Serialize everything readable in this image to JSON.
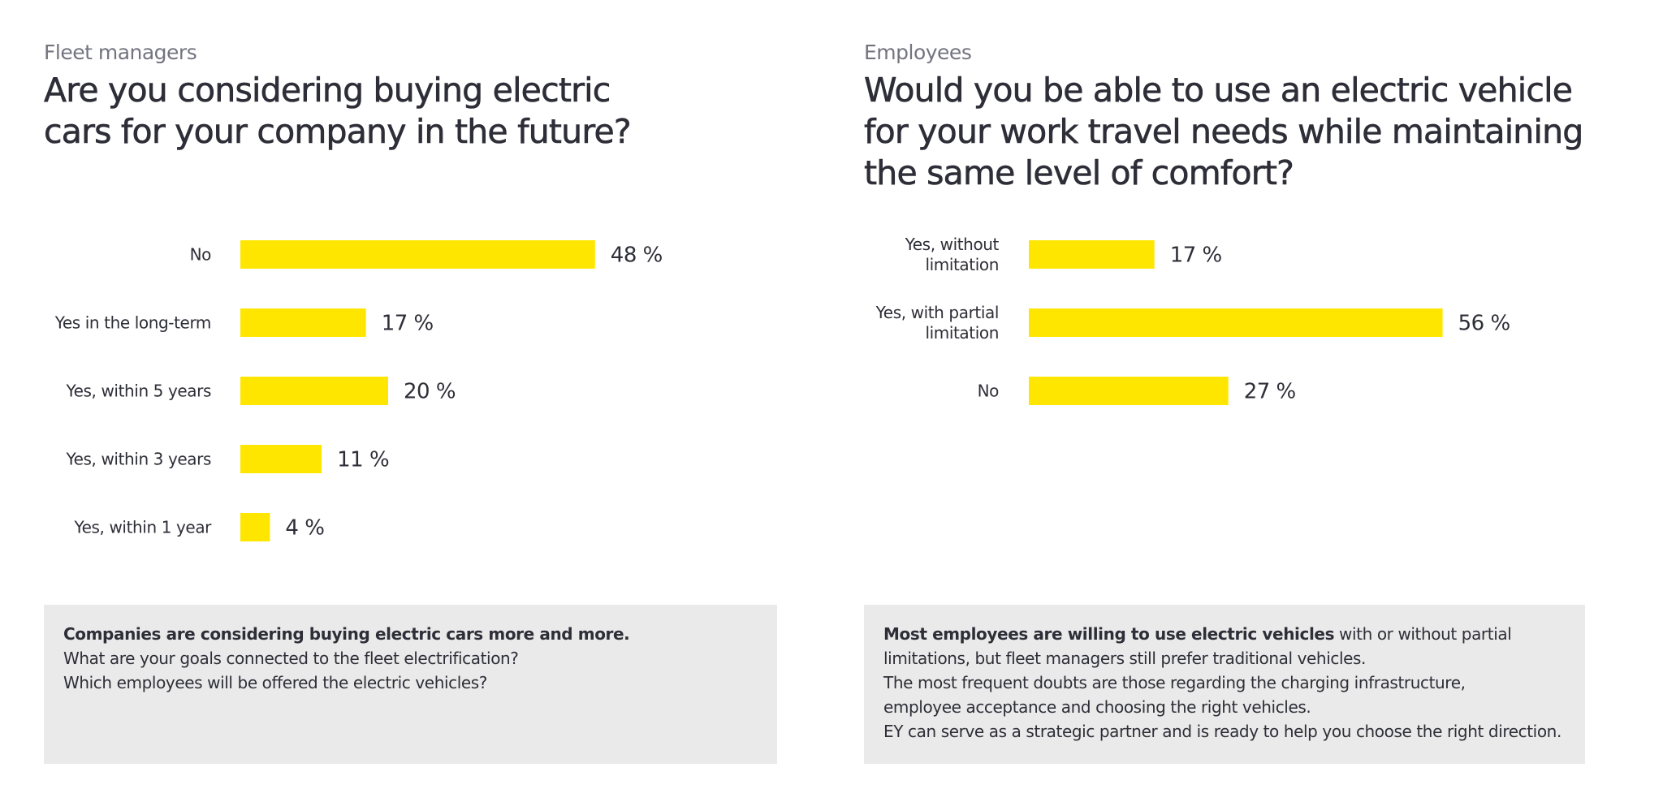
{
  "accent_color": "#ffe600",
  "text_color": "#2e2e38",
  "left": {
    "kicker": "Fleet managers",
    "title_lines": [
      "Are you considering buying electric",
      "cars for your company in the future?"
    ],
    "callout": {
      "bold": "Companies are considering buying electric cars more and more.",
      "lines": [
        "What are your goals connected to the fleet electrification?",
        "Which employees will be offered the electric vehicles?"
      ]
    }
  },
  "right": {
    "kicker": "Employees",
    "title_lines": [
      "Would you be able to use an electric vehicle",
      "for your work travel needs while maintaining",
      "the same level of comfort?"
    ],
    "callout": {
      "bold": "Most employees are willing to use electric vehicles",
      "first_rest": " with or without partial",
      "lines": [
        "limitations, but fleet managers still prefer traditional vehicles.",
        "The most frequent doubts are those regarding the charging infrastructure,",
        "employee acceptance and choosing the right vehicles.",
        "EY can serve as a strategic partner and is ready to help you choose the right direction."
      ]
    }
  },
  "chart_data": [
    {
      "type": "bar",
      "orientation": "horizontal",
      "title": "Are you considering buying electric cars for your company in the future?",
      "categories": [
        [
          "No"
        ],
        [
          "Yes in the long-term"
        ],
        [
          "Yes, within 5 years"
        ],
        [
          "Yes, within 3 years"
        ],
        [
          "Yes, within 1 year"
        ]
      ],
      "values": [
        48,
        17,
        20,
        11,
        4
      ],
      "value_labels": [
        "48 %",
        "17 %",
        "20 %",
        "11 %",
        "4 %"
      ],
      "unit": "%",
      "xlim": [
        0,
        100
      ],
      "grid": false,
      "color": "#ffe600"
    },
    {
      "type": "bar",
      "orientation": "horizontal",
      "title": "Would you be able to use an electric vehicle for your work travel needs while maintaining the same level of comfort?",
      "categories": [
        [
          "Yes, without",
          "limitation"
        ],
        [
          "Yes, with partial",
          "limitation"
        ],
        [
          "No"
        ]
      ],
      "values": [
        17,
        56,
        27
      ],
      "value_labels": [
        "17 %",
        "56 %",
        "27 %"
      ],
      "unit": "%",
      "xlim": [
        0,
        100
      ],
      "grid": false,
      "color": "#ffe600"
    }
  ]
}
